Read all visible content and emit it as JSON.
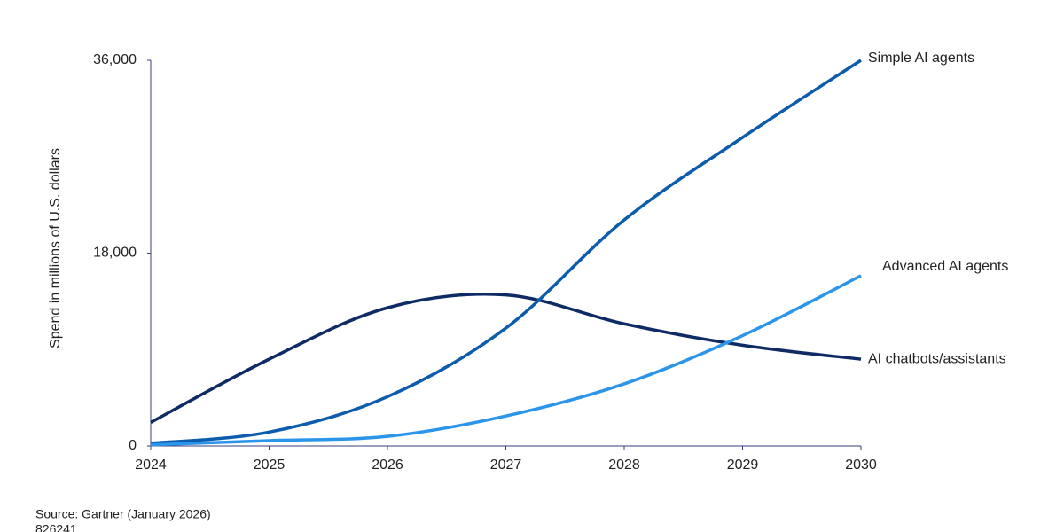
{
  "chart_data": {
    "type": "line",
    "ylabel": "Spend in millions of U.S. dollars",
    "x": [
      2024,
      2025,
      2026,
      2027,
      2028,
      2029,
      2030
    ],
    "xlim": [
      2024,
      2030
    ],
    "xticks": [
      2024,
      2025,
      2026,
      2027,
      2028,
      2029,
      2030
    ],
    "ylim": [
      0,
      36000
    ],
    "yticks": [
      0,
      {
        "value": 18000,
        "label": "18,000"
      },
      {
        "value": 36000,
        "label": "36,000"
      }
    ],
    "series": [
      {
        "name": "AI chatbots/assistants",
        "color": "#0f2b66",
        "values": [
          2200,
          8100,
          12900,
          14100,
          11400,
          9400,
          8100
        ]
      },
      {
        "name": "Simple AI agents",
        "color": "#0b5cad",
        "values": [
          250,
          1300,
          4600,
          11000,
          21100,
          28800,
          36000
        ]
      },
      {
        "name": "Advanced AI agents",
        "color": "#2b95ea",
        "values": [
          100,
          500,
          900,
          2800,
          5800,
          10300,
          15900
        ]
      }
    ],
    "source": "Source: Gartner (January 2026)",
    "id": "826241"
  }
}
